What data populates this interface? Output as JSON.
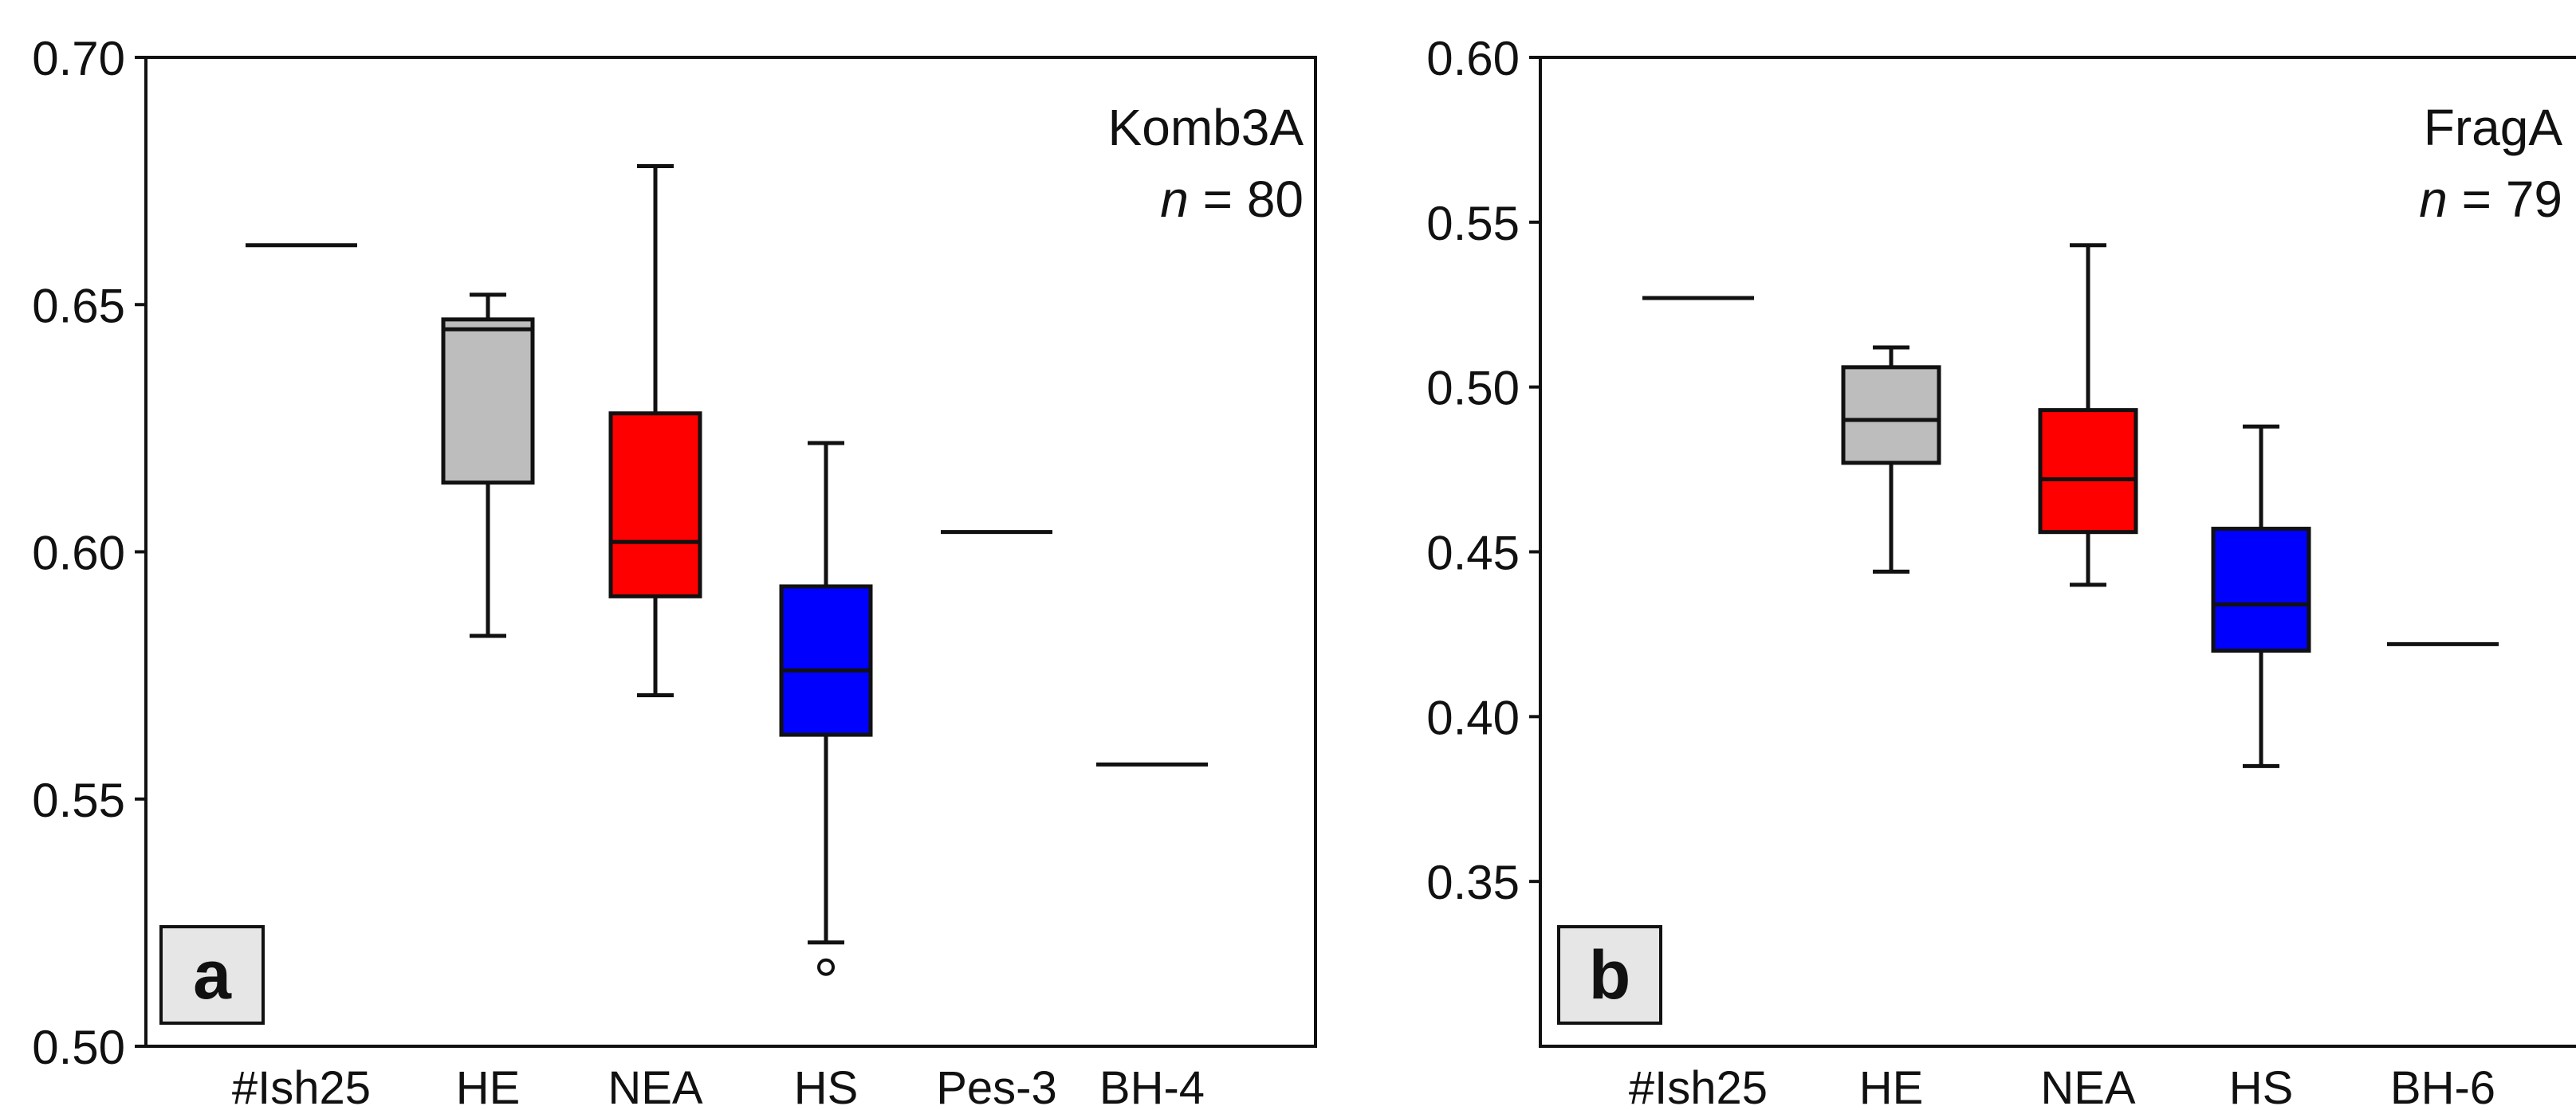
{
  "chart_data": [
    {
      "type": "box",
      "panel_label": "a",
      "annotation": {
        "dataset": "Komb3A",
        "n_prefix": "n",
        "n_suffix": " = 80"
      },
      "ylim": [
        0.5,
        0.7
      ],
      "yticks": [
        "0.50",
        "0.55",
        "0.60",
        "0.65",
        "0.70"
      ],
      "ytick_values": [
        0.5,
        0.55,
        0.6,
        0.65,
        0.7
      ],
      "categories": [
        "#Ish25",
        "HE",
        "NEA",
        "HS",
        "Pes-3",
        "BH-4"
      ],
      "groups": [
        {
          "category": "#Ish25",
          "kind": "single",
          "value": 0.662
        },
        {
          "category": "HE",
          "kind": "box",
          "whisker_low": 0.583,
          "q1": 0.614,
          "median": 0.645,
          "q3": 0.647,
          "whisker_high": 0.652,
          "color": "#bdbdbd"
        },
        {
          "category": "NEA",
          "kind": "box",
          "whisker_low": 0.571,
          "q1": 0.591,
          "median": 0.602,
          "q3": 0.628,
          "whisker_high": 0.678,
          "color": "#ff0000"
        },
        {
          "category": "HS",
          "kind": "box",
          "whisker_low": 0.521,
          "q1": 0.563,
          "median": 0.576,
          "q3": 0.593,
          "whisker_high": 0.622,
          "color": "#0000ff",
          "outliers": [
            0.516
          ]
        },
        {
          "category": "Pes-3",
          "kind": "single",
          "value": 0.604
        },
        {
          "category": "BH-4",
          "kind": "single",
          "value": 0.557
        }
      ]
    },
    {
      "type": "box",
      "panel_label": "b",
      "annotation": {
        "dataset": "FragA",
        "n_prefix": "n",
        "n_suffix": " = 79"
      },
      "ylim": [
        0.3,
        0.6
      ],
      "yticks": [
        "0.35",
        "0.40",
        "0.45",
        "0.50",
        "0.55",
        "0.60"
      ],
      "ytick_values": [
        0.35,
        0.4,
        0.45,
        0.5,
        0.55,
        0.6
      ],
      "categories": [
        "#Ish25",
        "HE",
        "NEA",
        "HS",
        "BH-6"
      ],
      "groups": [
        {
          "category": "#Ish25",
          "kind": "single",
          "value": 0.527
        },
        {
          "category": "HE",
          "kind": "box",
          "whisker_low": 0.444,
          "q1": 0.477,
          "median": 0.49,
          "q3": 0.506,
          "whisker_high": 0.512,
          "color": "#bdbdbd"
        },
        {
          "category": "NEA",
          "kind": "box",
          "whisker_low": 0.44,
          "q1": 0.456,
          "median": 0.472,
          "q3": 0.493,
          "whisker_high": 0.543,
          "color": "#ff0000"
        },
        {
          "category": "HS",
          "kind": "box",
          "whisker_low": 0.385,
          "q1": 0.42,
          "median": 0.434,
          "q3": 0.457,
          "whisker_high": 0.488,
          "color": "#0000ff"
        },
        {
          "category": "BH-6",
          "kind": "single",
          "value": 0.422
        }
      ]
    }
  ]
}
